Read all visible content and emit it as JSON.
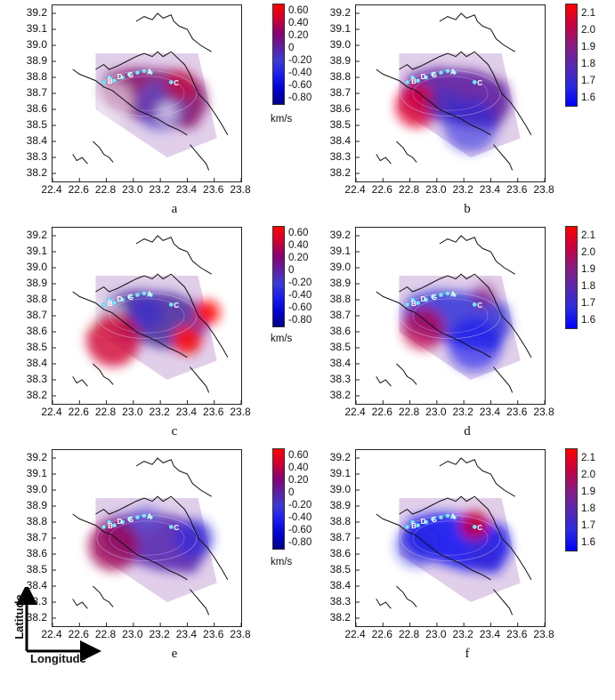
{
  "map_data": {
    "yticks": [
      "39.2",
      "39.1",
      "39.0",
      "38.9",
      "38.8",
      "38.7",
      "38.6",
      "38.5",
      "38.4",
      "38.3",
      "38.2"
    ],
    "xticks": [
      "22.4",
      "22.6",
      "22.8",
      "23.0",
      "23.2",
      "23.4",
      "23.6",
      "23.8"
    ],
    "station_labels": [
      "B",
      "D",
      "G",
      "A",
      "C"
    ]
  },
  "colorbars": {
    "velocity": {
      "labels": [
        "0.60",
        "0.40",
        "0.20",
        "0",
        "-0.20",
        "-0.40",
        "-0.60",
        "-0.80"
      ],
      "unit": "km/s",
      "colors": [
        "#ff0000",
        "#d00030",
        "#8a0070",
        "#6020a0",
        "#3a3ad8",
        "#1a1af0",
        "#0000d0",
        "#00008a"
      ]
    },
    "ratio": {
      "labels": [
        "2.1",
        "2.0",
        "1.9",
        "1.8",
        "1.7",
        "1.6"
      ],
      "colors": [
        "#ff0000",
        "#c80040",
        "#8a1a80",
        "#5a28b0",
        "#2a2ae0",
        "#0000ff"
      ]
    }
  },
  "panels": [
    {
      "id": "a",
      "label": "a",
      "cbar": "velocity"
    },
    {
      "id": "b",
      "label": "b",
      "cbar": "ratio"
    },
    {
      "id": "c",
      "label": "c",
      "cbar": "velocity"
    },
    {
      "id": "d",
      "label": "d",
      "cbar": "ratio"
    },
    {
      "id": "e",
      "label": "e",
      "cbar": "velocity"
    },
    {
      "id": "f",
      "label": "f",
      "cbar": "ratio"
    }
  ],
  "axes_legend": {
    "y": "Latitude",
    "x": "Longitude"
  }
}
